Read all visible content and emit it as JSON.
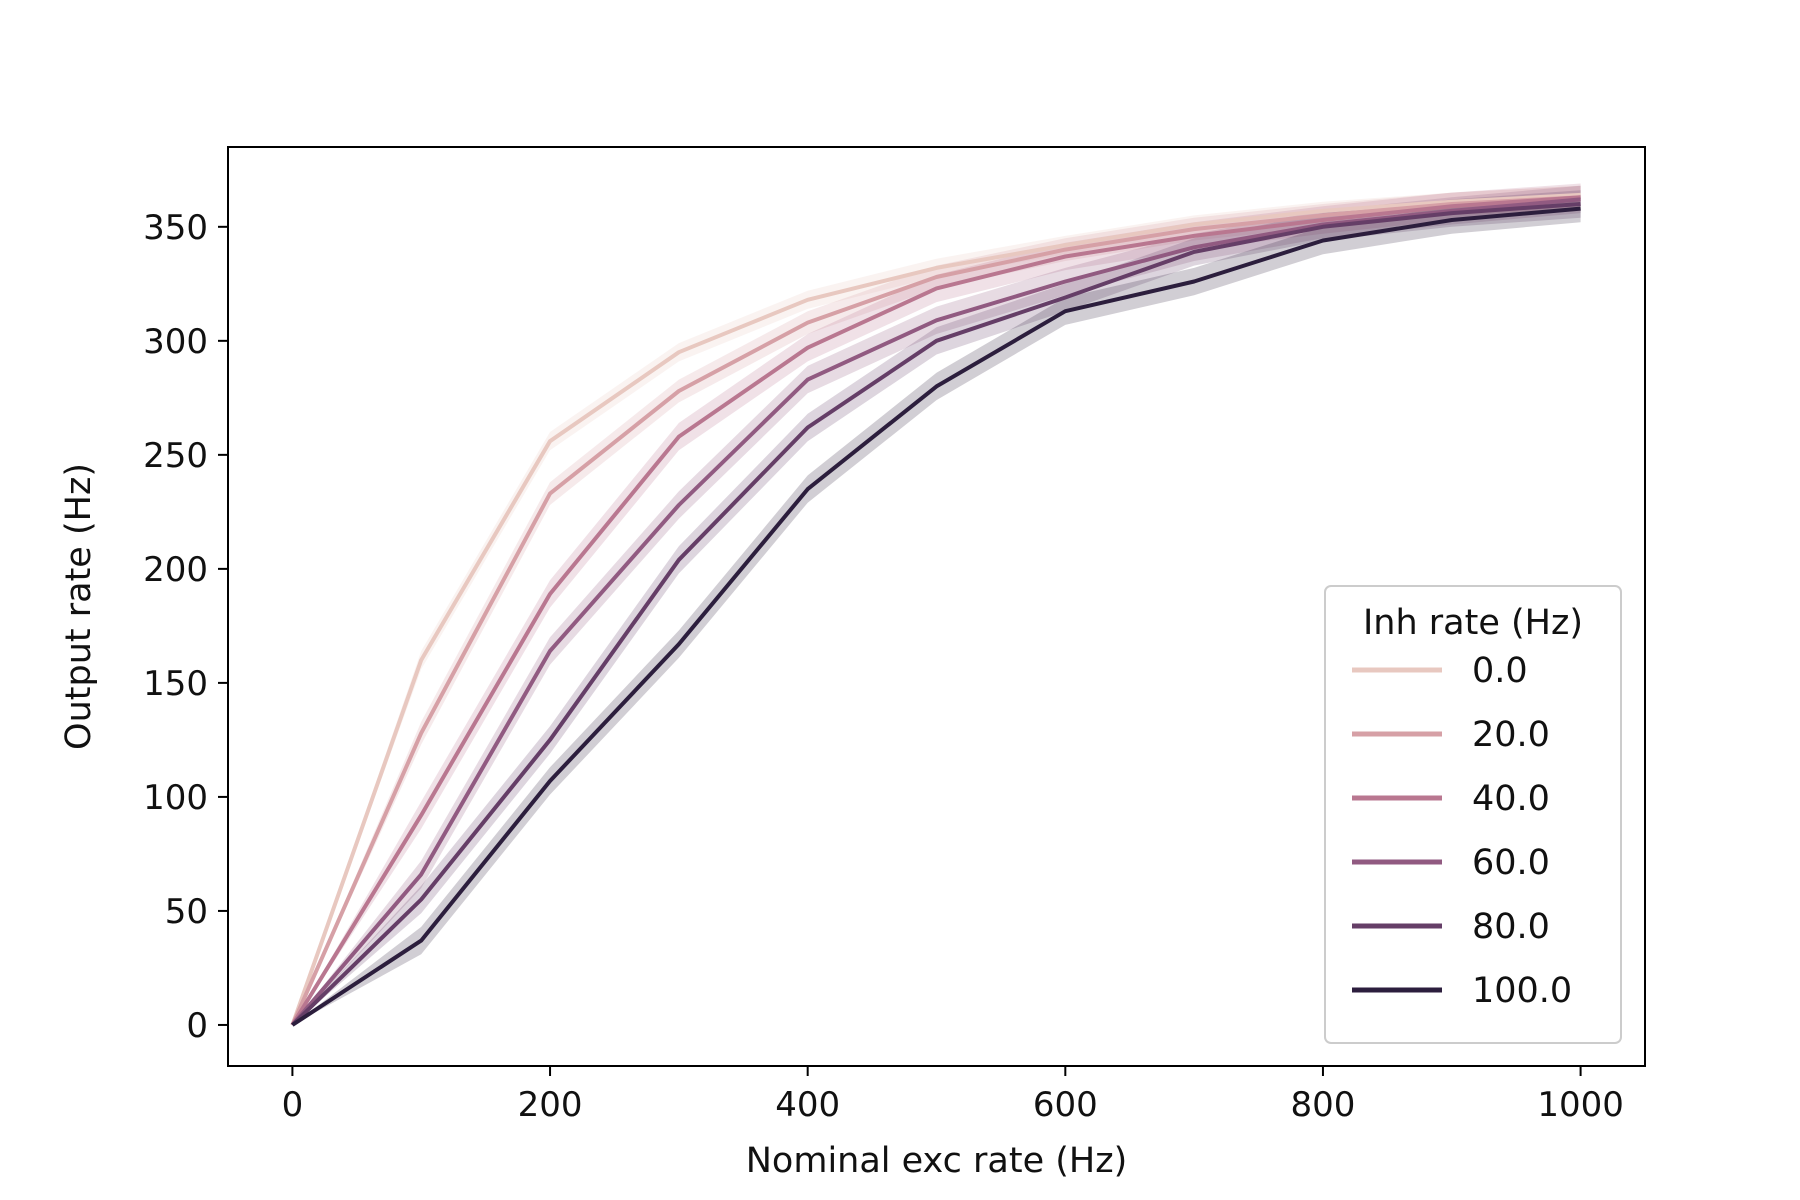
{
  "chart_data": {
    "type": "line",
    "title": "",
    "xlabel": "Nominal exc rate (Hz)",
    "ylabel": "Output rate (Hz)",
    "xlim": [
      -50,
      1050
    ],
    "ylim": [
      -18,
      385
    ],
    "x_ticks": [
      0,
      200,
      400,
      600,
      800,
      1000
    ],
    "y_ticks": [
      0,
      50,
      100,
      150,
      200,
      250,
      300,
      350
    ],
    "grid": false,
    "legend": {
      "title": "Inh rate (Hz)",
      "placement": "lower-right"
    },
    "x": [
      0,
      100,
      200,
      300,
      400,
      500,
      600,
      700,
      800,
      900,
      1000
    ],
    "series": [
      {
        "name": "0.0",
        "color": "#e8c8c0",
        "values": [
          0,
          160,
          256,
          295,
          318,
          332,
          342,
          351,
          357,
          361,
          364
        ],
        "ci": 4
      },
      {
        "name": "20.0",
        "color": "#d6a0a6",
        "values": [
          0,
          128,
          233,
          278,
          308,
          328,
          340,
          349,
          355,
          360,
          363
        ],
        "ci": 5
      },
      {
        "name": "40.0",
        "color": "#b97790",
        "values": [
          0,
          92,
          189,
          258,
          297,
          323,
          337,
          346,
          353,
          359,
          363
        ],
        "ci": 6
      },
      {
        "name": "60.0",
        "color": "#915a81",
        "values": [
          0,
          66,
          164,
          228,
          283,
          309,
          326,
          341,
          351,
          357,
          362
        ],
        "ci": 6
      },
      {
        "name": "80.0",
        "color": "#653e67",
        "values": [
          0,
          55,
          125,
          204,
          262,
          300,
          319,
          339,
          350,
          356,
          360
        ],
        "ci": 6
      },
      {
        "name": "100.0",
        "color": "#2c1e3d",
        "values": [
          0,
          37,
          107,
          167,
          235,
          280,
          313,
          326,
          344,
          353,
          358
        ],
        "ci": 6
      }
    ]
  }
}
